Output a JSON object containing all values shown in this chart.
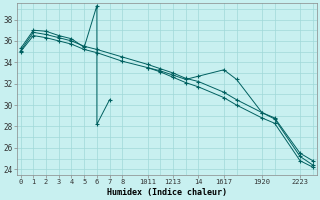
{
  "xlabel": "Humidex (Indice chaleur)",
  "background_color": "#c8f0f0",
  "grid_color": "#a0d8d8",
  "line_color": "#006060",
  "ylim": [
    23.5,
    39.5
  ],
  "xlim": [
    -0.3,
    23.3
  ],
  "ytick_vals": [
    24,
    26,
    28,
    30,
    32,
    34,
    36,
    38
  ],
  "xtick_positions": [
    0,
    1,
    2,
    3,
    4,
    5,
    6,
    7,
    8,
    10,
    11,
    12,
    13,
    14,
    16,
    17,
    19,
    20,
    22,
    23
  ],
  "xtick_labels": [
    "0",
    "1",
    "2",
    "3",
    "4",
    "5",
    "6",
    "7",
    "8",
    "1011",
    "1213",
    "14",
    "1617",
    "1920",
    "",
    "",
    "",
    "",
    "",
    "2223"
  ],
  "xtick_labels2": [
    "0",
    "1",
    "2",
    "3",
    "4",
    "5",
    "6",
    "7",
    "8",
    "10",
    "11",
    "12",
    "13",
    "14",
    "16",
    "17",
    "19",
    "20",
    "22",
    "23"
  ],
  "jagged_x": [
    0,
    1,
    2,
    3,
    4,
    5,
    6,
    6,
    7,
    8,
    10,
    11,
    12,
    13,
    14,
    16,
    17,
    19,
    20,
    22,
    23
  ],
  "jagged_y": [
    35.3,
    37.0,
    36.9,
    36.5,
    36.2,
    35.4,
    39.3,
    28.2,
    30.5,
    null,
    33.5,
    33.2,
    32.8,
    32.4,
    32.7,
    33.3,
    32.4,
    29.3,
    28.7,
    25.2,
    24.4
  ],
  "smooth1_x": [
    0,
    1,
    2,
    3,
    4,
    5,
    6,
    8,
    10,
    11,
    12,
    13,
    14,
    16,
    17,
    19,
    20,
    22,
    23
  ],
  "smooth1_y": [
    35.1,
    36.8,
    36.6,
    36.3,
    36.0,
    35.5,
    35.2,
    34.5,
    33.8,
    33.4,
    33.0,
    32.5,
    32.2,
    31.2,
    30.5,
    29.3,
    28.8,
    25.5,
    24.8
  ],
  "smooth2_x": [
    0,
    1,
    2,
    3,
    4,
    5,
    6,
    8,
    10,
    11,
    12,
    13,
    14,
    16,
    17,
    19,
    20,
    22,
    23
  ],
  "smooth2_y": [
    35.0,
    36.5,
    36.3,
    36.0,
    35.7,
    35.2,
    34.9,
    34.1,
    33.5,
    33.1,
    32.6,
    32.1,
    31.7,
    30.7,
    30.0,
    28.8,
    28.3,
    24.8,
    24.2
  ]
}
